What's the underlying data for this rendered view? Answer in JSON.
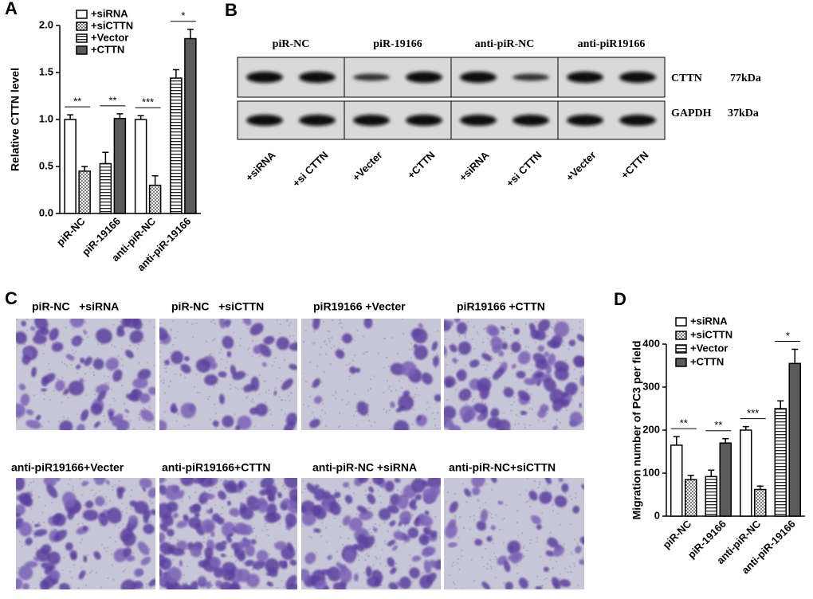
{
  "chart_data": [
    {
      "type": "bar",
      "panel": "A",
      "y_label": "Relative CTTN level",
      "categories": [
        "piR-NC",
        "piR-19166",
        "anti-piR-NC",
        "anti-piR-19166"
      ],
      "series": [
        {
          "name": "+siRNA",
          "color": "#ffffff",
          "pattern": "none",
          "values": [
            1.0,
            null,
            1.0,
            null
          ],
          "errors": [
            0.05,
            null,
            0.04,
            null
          ]
        },
        {
          "name": "+siCTTN",
          "color": "#ffffff",
          "pattern": "dots",
          "values": [
            0.45,
            null,
            0.3,
            null
          ],
          "errors": [
            0.05,
            null,
            0.1,
            null
          ]
        },
        {
          "name": "+Vector",
          "color": "#ffffff",
          "pattern": "stripes",
          "values": [
            null,
            0.53,
            null,
            1.44
          ],
          "errors": [
            null,
            0.12,
            null,
            0.09
          ]
        },
        {
          "name": "+CTTN",
          "color": "#5a5a5a",
          "pattern": "none",
          "values": [
            null,
            1.01,
            null,
            1.86
          ],
          "errors": [
            null,
            0.05,
            null,
            0.1
          ]
        }
      ],
      "significance": [
        "**",
        "**",
        "***",
        "*"
      ],
      "ylim": [
        0,
        2
      ],
      "yticks": [
        {
          "value": 0,
          "label": "0.0"
        },
        0.5,
        {
          "value": 1,
          "label": "1.0"
        },
        1.5,
        {
          "value": 2,
          "label": "2.0"
        }
      ]
    },
    {
      "type": "bar",
      "panel": "D",
      "y_label": "Migration number of PC3 per field",
      "categories": [
        "piR-NC",
        "piR-19166",
        "anti-piR-NC",
        "anti-piR-19166"
      ],
      "series": [
        {
          "name": "+siRNA",
          "color": "#ffffff",
          "pattern": "none",
          "values": [
            165,
            null,
            200,
            null
          ],
          "errors": [
            20,
            null,
            8,
            null
          ]
        },
        {
          "name": "+siCTTN",
          "color": "#ffffff",
          "pattern": "dots",
          "values": [
            85,
            null,
            62,
            null
          ],
          "errors": [
            10,
            null,
            8,
            null
          ]
        },
        {
          "name": "+Vector",
          "color": "#ffffff",
          "pattern": "stripes",
          "values": [
            null,
            92,
            null,
            250
          ],
          "errors": [
            null,
            15,
            null,
            18
          ]
        },
        {
          "name": "+CTTN",
          "color": "#5a5a5a",
          "pattern": "none",
          "values": [
            null,
            170,
            null,
            355
          ],
          "errors": [
            null,
            10,
            null,
            33
          ]
        }
      ],
      "significance": [
        "**",
        "**",
        "***",
        "*"
      ],
      "ylim": [
        0,
        400
      ],
      "yticks": [
        0,
        100,
        200,
        300,
        400
      ]
    }
  ],
  "blot": {
    "panel": "B",
    "groups": [
      "piR-NC",
      "piR-19166",
      "anti-piR-NC",
      "anti-piR19166"
    ],
    "proteins": [
      {
        "name": "CTTN",
        "size": "77kDa"
      },
      {
        "name": "GAPDH",
        "size": "37kDa"
      }
    ],
    "lanes": [
      "+siRNA",
      "+si CTTN",
      "+Vecter",
      "+CTTN",
      "+siRNA",
      "+si CTTN",
      "+Vecter",
      "+CTTN"
    ]
  },
  "images": {
    "panel": "C",
    "captions": [
      "piR-NC   +siRNA",
      "piR-NC   +siCTTN",
      "piR19166 +Vecter",
      "piR19166 +CTTN",
      "anti-piR19166+Vecter",
      "anti-piR19166+CTTN",
      "anti-piR-NC +siRNA",
      "anti-piR-NC+siCTTN"
    ]
  }
}
